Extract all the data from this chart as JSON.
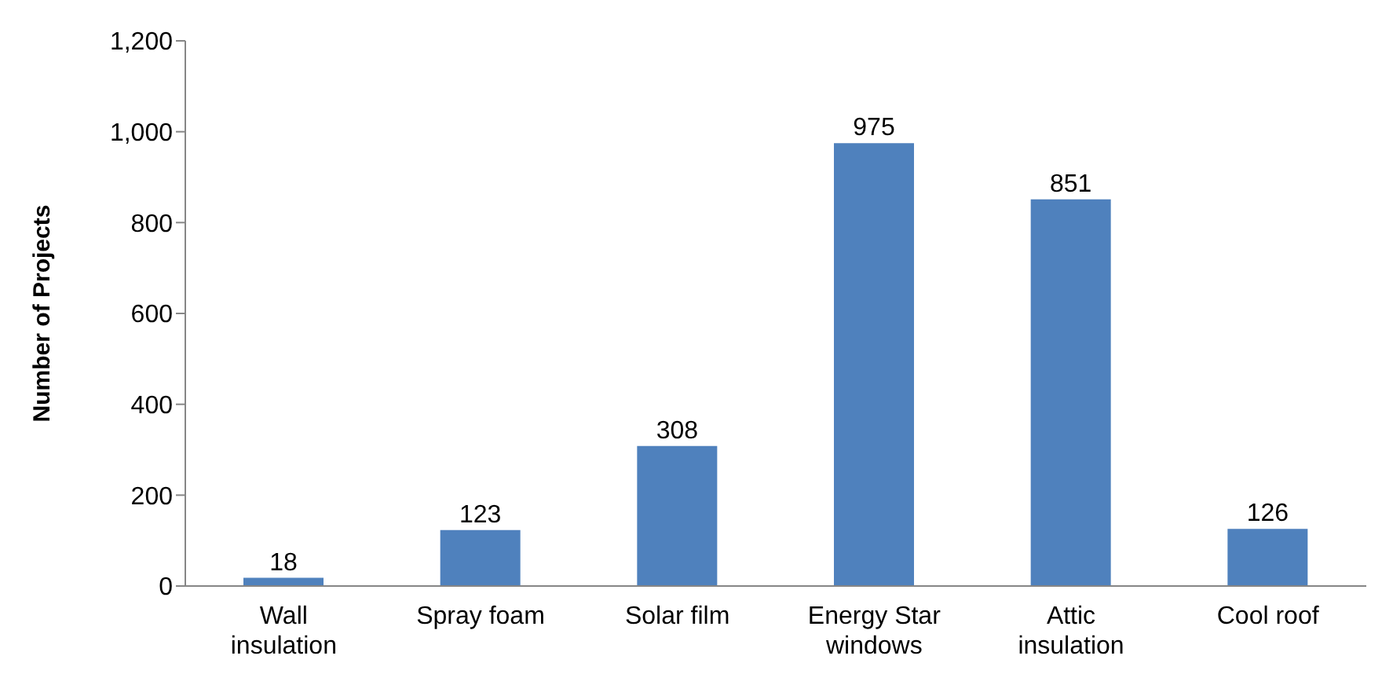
{
  "chart_data": {
    "type": "bar",
    "ylabel": "Number of Projects",
    "categories": [
      "Wall insulation",
      "Spray foam",
      "Solar film",
      "Energy Star windows",
      "Attic insulation",
      "Cool roof"
    ],
    "values": [
      18,
      123,
      308,
      975,
      851,
      126
    ],
    "color": "#4f81bd",
    "ylim": [
      0,
      1200
    ],
    "yticks": [
      0,
      200,
      400,
      600,
      800,
      {
        "value": 1000,
        "label": "1,000"
      },
      {
        "value": 1200,
        "label": "1,200"
      }
    ],
    "data_labels": true,
    "grid": false,
    "legend": false
  }
}
